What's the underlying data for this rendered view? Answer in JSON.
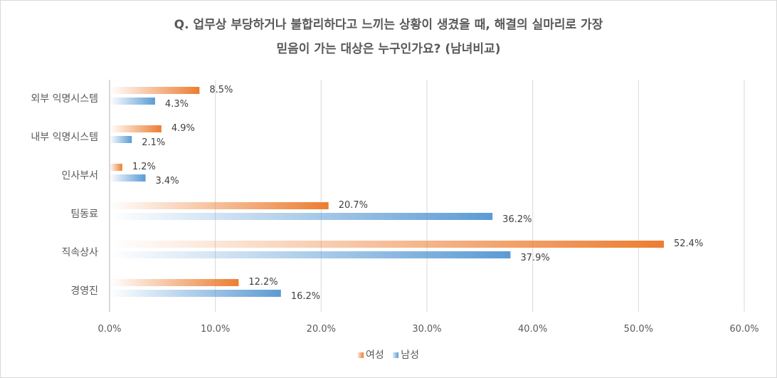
{
  "chart_data": {
    "type": "bar",
    "orientation": "horizontal",
    "title": "Q. 업무상 부당하거나 불합리하다고 느끼는 상황이 생겼을 때, 해결의 실마리로 가장 믿음이 가는 대상은 누구인가요? (남녀비교)",
    "title_lines": [
      "Q. 업무상 부당하거나 불합리하다고 느끼는 상황이 생겼을 때, 해결의 실마리로 가장",
      "믿음이 가는 대상은 누구인가요? (남녀비교)"
    ],
    "categories": [
      "외부 익명시스템",
      "내부 익명시스템",
      "인사부서",
      "팀동료",
      "직속상사",
      "경영진"
    ],
    "series": [
      {
        "name": "여성",
        "color": "#ED7D31",
        "values": [
          8.5,
          4.9,
          1.2,
          20.7,
          52.4,
          12.2
        ],
        "labels": [
          "8.5%",
          "4.9%",
          "1.2%",
          "20.7%",
          "52.4%",
          "12.2%"
        ]
      },
      {
        "name": "남성",
        "color": "#5B9BD5",
        "values": [
          4.3,
          2.1,
          3.4,
          36.2,
          37.9,
          16.2
        ],
        "labels": [
          "4.3%",
          "2.1%",
          "3.4%",
          "36.2%",
          "37.9%",
          "16.2%"
        ]
      }
    ],
    "xlim": [
      0,
      60
    ],
    "x_ticks": [
      0,
      10,
      20,
      30,
      40,
      50,
      60
    ],
    "x_tick_labels": [
      "0.0%",
      "10.0%",
      "20.0%",
      "30.0%",
      "40.0%",
      "50.0%",
      "60.0%"
    ],
    "grid": true,
    "legend_position": "bottom"
  }
}
